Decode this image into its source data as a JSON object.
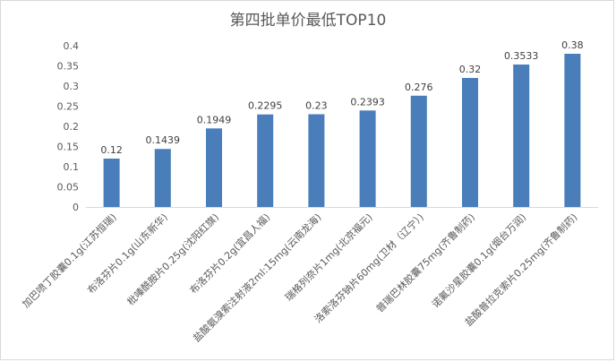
{
  "chart_data": {
    "type": "bar",
    "title": "第四批单价最低TOP10",
    "categories": [
      "加巴喷丁胶囊0.1g(江苏恒瑞)",
      "布洛芬片0.1g(山东新华)",
      "枇嗪酰胺片0.25g(沈阳红旗)",
      "布洛芬片0.2g(宜昌人福)",
      "盐酸氨溴索注射液2ml:15mg(云南龙海)",
      "瑞格列奈片1mg(北京福元)",
      "洛索洛芬钠片60mg(卫材（辽宁）)",
      "普瑞巴林胶囊75mg(齐鲁制药)",
      "诺氟沙星胶囊0.1g(烟台万润)",
      "盐酸普拉克索片0.25mg(齐鲁制药)"
    ],
    "values": [
      0.12,
      0.1439,
      0.1949,
      0.2295,
      0.23,
      0.2393,
      0.276,
      0.32,
      0.3533,
      0.38
    ],
    "data_labels": [
      "0.12",
      "0.1439",
      "0.1949",
      "0.2295",
      "0.23",
      "0.2393",
      "0.276",
      "0.32",
      "0.3533",
      "0.38"
    ],
    "y_ticks": [
      "0",
      "0.05",
      "0.1",
      "0.15",
      "0.2",
      "0.25",
      "0.3",
      "0.35",
      "0.4"
    ],
    "ylim": [
      0,
      0.4
    ],
    "bar_color": "#4a7ebb",
    "grid": false,
    "legend": "none"
  }
}
